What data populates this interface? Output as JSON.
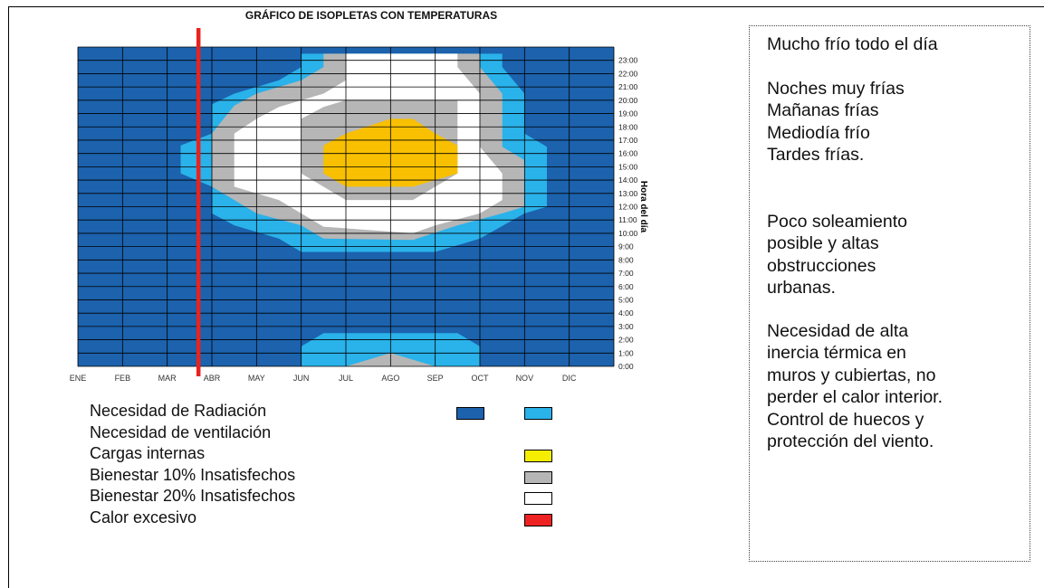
{
  "chart_data": {
    "type": "heatmap",
    "title": "GRÁFICO DE ISOPLETAS CON TEMPERATURAS",
    "xlabel": "",
    "ylabel": "Hora del día",
    "x_ticks": [
      "ENE",
      "FEB",
      "MAR",
      "ABR",
      "MAY",
      "JUN",
      "JUL",
      "AGO",
      "SEP",
      "OCT",
      "NOV",
      "DIC"
    ],
    "y_ticks": [
      "0:00",
      "1:00",
      "2:00",
      "3:00",
      "4:00",
      "5:00",
      "6:00",
      "7:00",
      "8:00",
      "9:00",
      "10:00",
      "11:00",
      "12:00",
      "13:00",
      "14:00",
      "15:00",
      "16:00",
      "17:00",
      "18:00",
      "19:00",
      "20:00",
      "21:00",
      "22:00",
      "23:00"
    ],
    "y_axis_side": "right",
    "marker_line": {
      "month_position": 2.7,
      "color": "#e8231e"
    },
    "zones": [
      {
        "name": "Necesidad de ventilación",
        "color": "#2ab2ea",
        "polygon": [
          [
            2.3,
            14.5
          ],
          [
            2.3,
            16.6
          ],
          [
            3.0,
            17.5
          ],
          [
            3.0,
            19.7
          ],
          [
            3.5,
            20.5
          ],
          [
            4.5,
            21.5
          ],
          [
            5.0,
            22.5
          ],
          [
            5.0,
            23.5
          ],
          [
            9.5,
            23.5
          ],
          [
            9.5,
            22.5
          ],
          [
            10.0,
            20.5
          ],
          [
            10.0,
            17.5
          ],
          [
            10.5,
            16.5
          ],
          [
            10.5,
            12.0
          ],
          [
            10.0,
            11.5
          ],
          [
            9.0,
            9.6
          ],
          [
            8.0,
            8.6
          ],
          [
            5.0,
            8.6
          ],
          [
            4.5,
            9.6
          ],
          [
            3.5,
            10.6
          ],
          [
            3.0,
            11.5
          ],
          [
            3.0,
            13.5
          ]
        ]
      },
      {
        "name": "Bienestar 10% Insatisfechos",
        "color": "#b6b6b6",
        "polygon": [
          [
            3.0,
            14.5
          ],
          [
            3.0,
            17.5
          ],
          [
            3.5,
            19.6
          ],
          [
            4.0,
            20.5
          ],
          [
            5.0,
            21.5
          ],
          [
            5.5,
            22.5
          ],
          [
            5.5,
            23.5
          ],
          [
            9.0,
            23.5
          ],
          [
            9.0,
            22.5
          ],
          [
            9.5,
            20.5
          ],
          [
            9.5,
            16.5
          ],
          [
            10.0,
            15.5
          ],
          [
            10.0,
            12.0
          ],
          [
            9.5,
            11.5
          ],
          [
            8.5,
            10.6
          ],
          [
            7.5,
            9.5
          ],
          [
            5.5,
            9.6
          ],
          [
            5.0,
            10.6
          ],
          [
            4.0,
            11.5
          ],
          [
            3.5,
            12.5
          ],
          [
            3.0,
            13.5
          ]
        ]
      },
      {
        "name": "Bienestar 20% Insatisfechos",
        "color": "#ffffff",
        "polygon": [
          [
            3.5,
            14.5
          ],
          [
            3.5,
            17.5
          ],
          [
            4.0,
            18.6
          ],
          [
            4.5,
            19.5
          ],
          [
            5.5,
            20.5
          ],
          [
            6.0,
            21.5
          ],
          [
            6.0,
            23.5
          ],
          [
            8.5,
            23.5
          ],
          [
            8.5,
            22.5
          ],
          [
            9.0,
            20.5
          ],
          [
            9.0,
            16.5
          ],
          [
            9.5,
            14.5
          ],
          [
            9.5,
            12.5
          ],
          [
            9.0,
            11.5
          ],
          [
            8.0,
            10.6
          ],
          [
            7.5,
            10.0
          ],
          [
            5.5,
            10.5
          ],
          [
            5.0,
            11.5
          ],
          [
            4.5,
            12.5
          ],
          [
            3.5,
            13.5
          ]
        ]
      },
      {
        "name": "Bienestar 10% Insatisfechos",
        "color": "#b6b6b6",
        "polygon": [
          [
            5.0,
            14.5
          ],
          [
            5.0,
            18.6
          ],
          [
            5.5,
            19.5
          ],
          [
            6.0,
            20.0
          ],
          [
            8.5,
            20.0
          ],
          [
            8.5,
            14.5
          ],
          [
            8.0,
            13.5
          ],
          [
            7.5,
            12.5
          ],
          [
            6.0,
            12.5
          ],
          [
            5.5,
            13.5
          ]
        ]
      },
      {
        "name": "Cargas internas",
        "color": "#f8c000",
        "polygon": [
          [
            5.5,
            14.5
          ],
          [
            5.5,
            16.6
          ],
          [
            6.0,
            17.5
          ],
          [
            7.0,
            18.6
          ],
          [
            7.5,
            18.6
          ],
          [
            8.0,
            17.5
          ],
          [
            8.5,
            16.6
          ],
          [
            8.5,
            14.5
          ],
          [
            7.5,
            13.5
          ],
          [
            6.0,
            13.5
          ],
          [
            5.5,
            14.5
          ]
        ]
      },
      {
        "name": "Necesidad de ventilación",
        "color": "#2ab2ea",
        "polygon": [
          [
            5.0,
            0
          ],
          [
            5.0,
            1.5
          ],
          [
            5.5,
            2.5
          ],
          [
            8.5,
            2.5
          ],
          [
            9.0,
            1.5
          ],
          [
            9.0,
            0
          ]
        ]
      },
      {
        "name": "Bienestar 10% Insatisfechos",
        "color": "#b6b6b6",
        "polygon": [
          [
            6.0,
            0
          ],
          [
            7.0,
            1.0
          ],
          [
            8.0,
            0
          ]
        ]
      }
    ]
  },
  "legend": [
    {
      "label": "Necesidad de Radiación",
      "swatches": [
        "#1c62ad",
        "#2ab2ea"
      ]
    },
    {
      "label": "Necesidad de ventilación",
      "swatches": []
    },
    {
      "label": "Cargas internas",
      "swatches": [
        "#f5ee00"
      ]
    },
    {
      "label": "Bienestar 10% Insatisfechos",
      "swatches": [
        "#b6b6b6"
      ]
    },
    {
      "label": "Bienestar 20% Insatisfechos",
      "swatches": [
        "#ffffff"
      ]
    },
    {
      "label": "Calor excesivo",
      "swatches": [
        "#ee2222"
      ]
    }
  ],
  "colors": {
    "background_zone": "#1c62ad",
    "grid": "#000000"
  },
  "notes": [
    "Mucho frío todo el día",
    "Noches muy frías\nMañanas frías\nMediodía frío\nTardes frías.",
    "Poco soleamiento\nposible y altas\nobstrucciones\nurbanas.",
    "Necesidad de alta\ninercia térmica en\nmuros y cubiertas, no\nperder el calor interior.\nControl de huecos y\nprotección del viento."
  ]
}
